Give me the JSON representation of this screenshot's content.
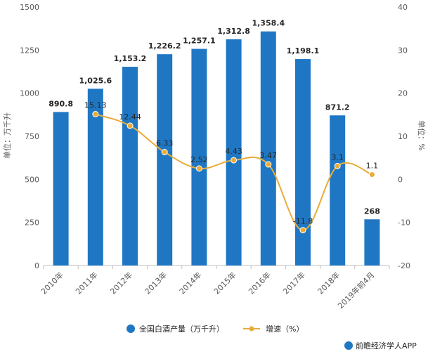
{
  "chart_data": {
    "type": "bar",
    "categories": [
      "2010年",
      "2011年",
      "2012年",
      "2013年",
      "2014年",
      "2015年",
      "2016年",
      "2017年",
      "2018年",
      "2019年前4月"
    ],
    "series": [
      {
        "name": "全国白酒产量（万千升）",
        "type": "bar",
        "axis": "left",
        "values": [
          890.8,
          1025.6,
          1153.2,
          1226.2,
          1257.1,
          1312.8,
          1358.4,
          1198.1,
          871.2,
          268
        ],
        "labels": [
          "890.8",
          "1,025.6",
          "1,153.2",
          "1,226.2",
          "1,257.1",
          "1,312.8",
          "1,358.4",
          "1,198.1",
          "871.2",
          "268"
        ],
        "color": "#1f77c4"
      },
      {
        "name": "增速（%）",
        "type": "line",
        "axis": "right",
        "values": [
          null,
          15.13,
          12.44,
          6.33,
          2.52,
          4.43,
          3.47,
          -11.8,
          3.1,
          1.1
        ],
        "labels": [
          "",
          "15.13",
          "12.44",
          "6.33",
          "2.52",
          "4.43",
          "3.47",
          "-11.8",
          "3.1",
          "1.1"
        ],
        "color": "#e8ac3a"
      }
    ],
    "ylabel": "单位：万千升",
    "y2label": "单位：%",
    "ylim": [
      0,
      1500
    ],
    "yticks": [
      0,
      250,
      500,
      750,
      1000,
      1250,
      1500
    ],
    "y2lim": [
      -20,
      40
    ],
    "y2ticks": [
      -20,
      -10,
      0,
      10,
      20,
      30,
      40
    ],
    "grid": false,
    "legend": "bottom"
  },
  "legend": {
    "bar_label": "全国白酒产量（万千升）",
    "line_label": "增速（%）"
  },
  "source": "前瞻经济学人APP"
}
